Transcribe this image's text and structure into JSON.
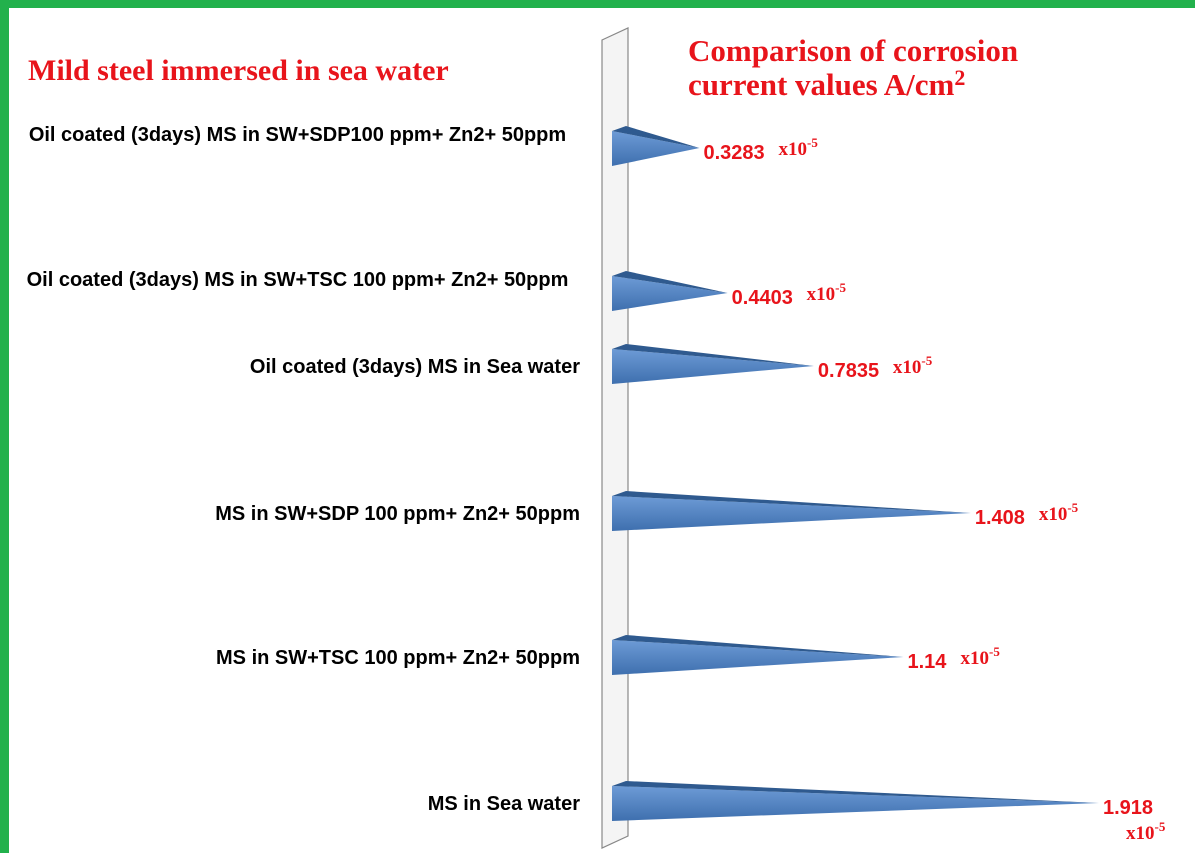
{
  "chart_data": {
    "type": "cone-bar",
    "title": {
      "text": "Comparison of corrosion current values A/cm",
      "superscript": "2"
    },
    "subtitle": "Mild steel immersed in sea water",
    "unit": {
      "base": "x10",
      "exponent": "-5"
    },
    "categories": [
      "Oil coated (3days) MS in SW+SDP100 ppm+ Zn2+ 50ppm",
      "Oil coated (3days) MS in SW+TSC 100 ppm+ Zn2+ 50ppm",
      "Oil coated (3days) MS in Sea water",
      "MS in SW+SDP 100 ppm+ Zn2+ 50ppm",
      "MS in SW+TSC 100 ppm+ Zn2+ 50ppm",
      "MS in  Sea water"
    ],
    "values": [
      0.3283,
      0.4403,
      0.7835,
      1.408,
      1.14,
      1.918
    ],
    "color": "#4f81bd",
    "xlim": [
      0,
      2.3
    ]
  }
}
